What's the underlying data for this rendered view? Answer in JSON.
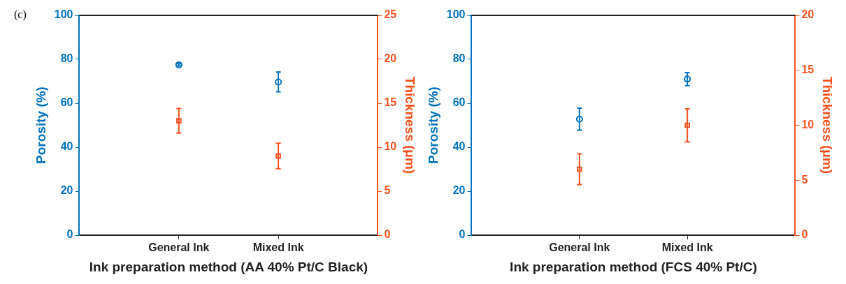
{
  "chart_data": [
    {
      "type": "scatter",
      "xlabel": "Ink preparation method (AA 40% Pt/C Black)",
      "ylabel": "Porosity (%)",
      "y2label": "Thickness (μm)",
      "annotations": [
        "(c)"
      ],
      "categories": [
        "General Ink",
        "Mixed Ink"
      ],
      "ylim": [
        0,
        100
      ],
      "yticks": [
        0,
        20,
        40,
        60,
        80,
        100
      ],
      "y2lim": [
        0,
        25
      ],
      "y2ticks": [
        0,
        5,
        10,
        15,
        20,
        25
      ],
      "grid": false,
      "legend": false,
      "series": [
        {
          "color": "#0072bd",
          "marker": "circle",
          "values": [
            77.5,
            69.7
          ],
          "errors": [
            0.5,
            4.5
          ]
        },
        {
          "color": "#f4511e",
          "marker": "square",
          "axis": "y2",
          "values": [
            13,
            9
          ],
          "errors": [
            1.4,
            1.45
          ]
        }
      ]
    },
    {
      "type": "scatter",
      "xlabel": "Ink preparation method (FCS 40% Pt/C)",
      "ylabel": "Porosity (%)",
      "y2label": "Thickness (μm)",
      "categories": [
        "General Ink",
        "Mixed Ink"
      ],
      "ylim": [
        0,
        100
      ],
      "yticks": [
        0,
        20,
        40,
        60,
        80,
        100
      ],
      "y2lim": [
        0,
        20
      ],
      "y2ticks": [
        0,
        5,
        10,
        15,
        20
      ],
      "grid": false,
      "legend": false,
      "series": [
        {
          "color": "#0072bd",
          "marker": "circle",
          "values": [
            52.8,
            71
          ],
          "errors": [
            5,
            3
          ]
        },
        {
          "color": "#f4511e",
          "marker": "square",
          "axis": "y2",
          "values": [
            6,
            10
          ],
          "errors": [
            1.4,
            1.5
          ]
        }
      ]
    }
  ]
}
